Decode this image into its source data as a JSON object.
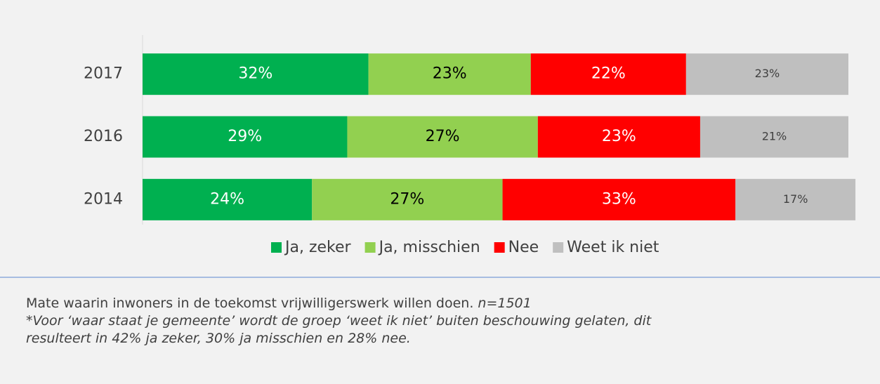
{
  "chart_data": {
    "type": "bar",
    "orientation": "horizontal",
    "stacked": true,
    "categories": [
      "2017",
      "2016",
      "2014"
    ],
    "series": [
      {
        "name": "Ja, zeker",
        "color": "#00b050",
        "label_color": "#ffffff",
        "values": [
          32,
          29,
          24
        ],
        "value_labels": [
          "32%",
          "29%",
          "24%"
        ]
      },
      {
        "name": "Ja, misschien",
        "color": "#92d050",
        "label_color": "#000000",
        "values": [
          23,
          27,
          27
        ],
        "value_labels": [
          "23%",
          "27%",
          "27%"
        ]
      },
      {
        "name": "Nee",
        "color": "#ff0000",
        "label_color": "#ffffff",
        "values": [
          22,
          23,
          33
        ],
        "value_labels": [
          "22%",
          "23%",
          "33%"
        ]
      },
      {
        "name": "Weet ik niet",
        "color": "#bfbfbf",
        "label_color": "#404040",
        "values": [
          23,
          21,
          17
        ],
        "value_labels": [
          "23%",
          "21%",
          "17%"
        ]
      }
    ],
    "xlim": [
      0,
      100
    ],
    "legend": "bottom"
  },
  "caption": {
    "text": "Mate waarin inwoners in de toekomst vrijwilligerswerk willen doen.",
    "n": "n=1501",
    "footnote": [
      "*Voor ‘waar staat je gemeente’ wordt de groep ‘weet ik niet’ buiten beschouwing gelaten, dit",
      "resulteert in 42% ja zeker, 30% ja misschien en 28% nee."
    ]
  }
}
